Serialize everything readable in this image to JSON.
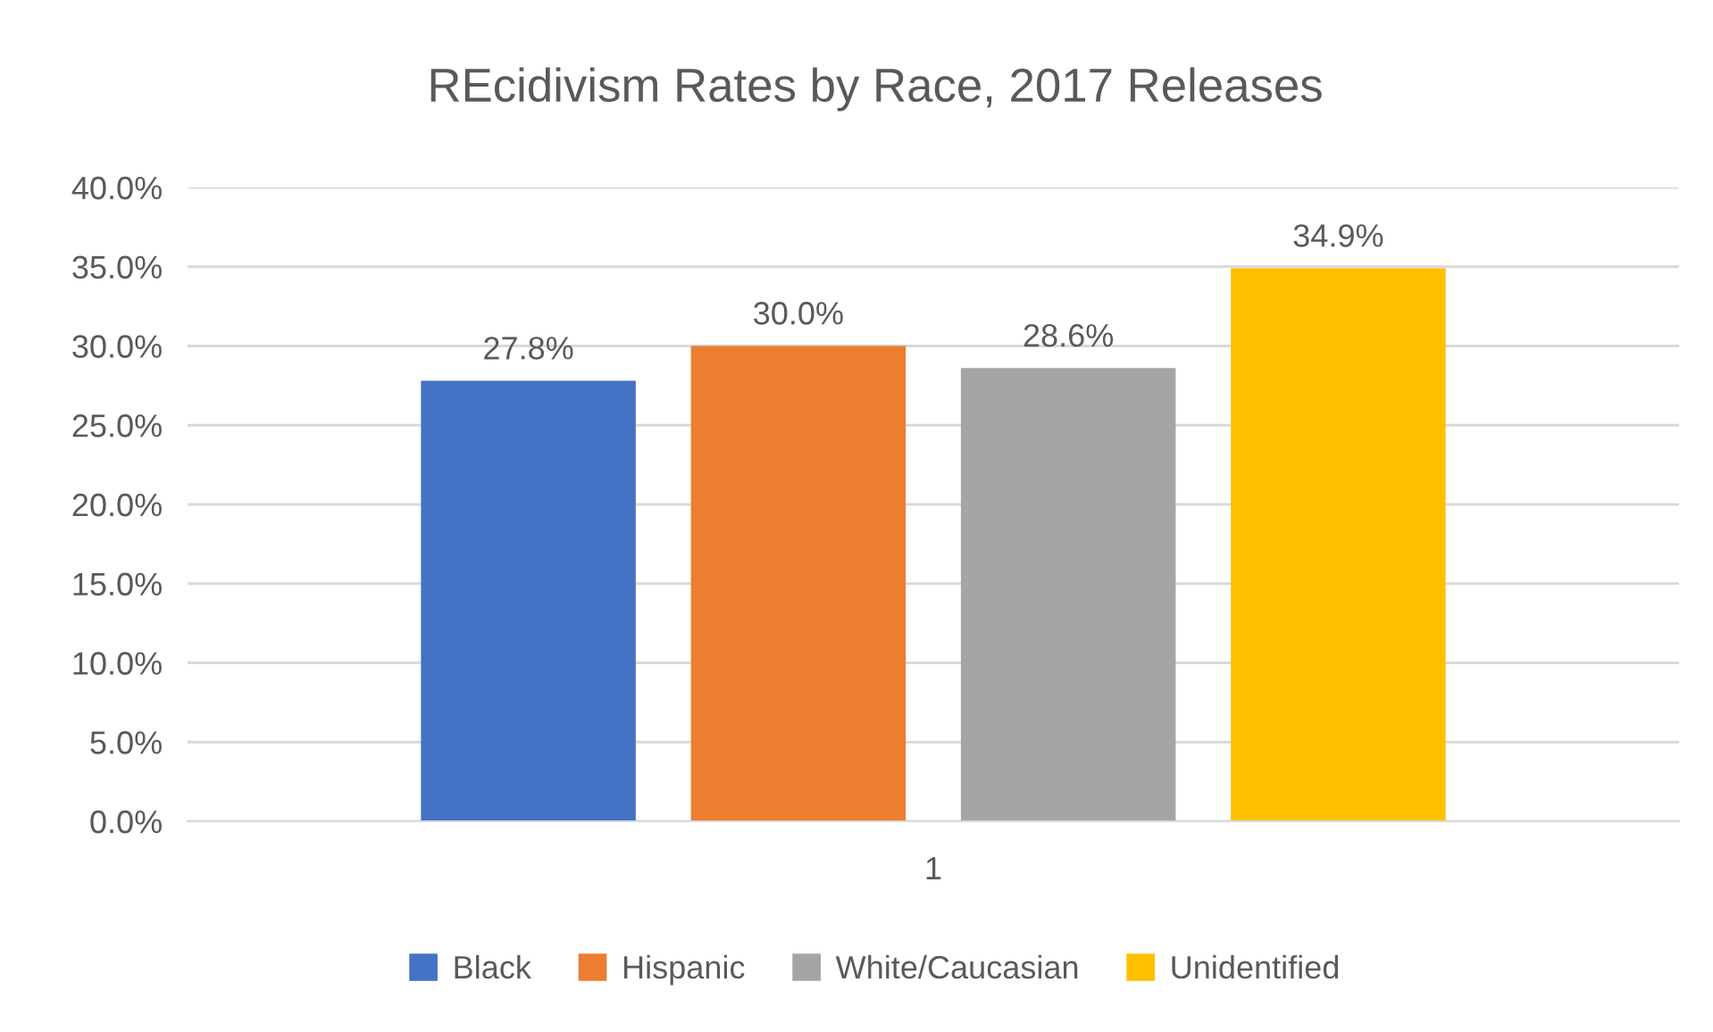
{
  "chart_data": {
    "type": "bar",
    "title": "REcidivism Rates by Race, 2017 Releases",
    "categories": [
      "1"
    ],
    "series": [
      {
        "name": "Black",
        "color": "#4472c4",
        "values": [
          27.8
        ],
        "value_labels": [
          "27.8%"
        ]
      },
      {
        "name": "Hispanic",
        "color": "#ed7d31",
        "values": [
          30.0
        ],
        "value_labels": [
          "30.0%"
        ]
      },
      {
        "name": "White/Caucasian",
        "color": "#a5a5a5",
        "values": [
          28.6
        ],
        "value_labels": [
          "28.6%"
        ]
      },
      {
        "name": "Unidentified",
        "color": "#ffc000",
        "values": [
          34.9
        ],
        "value_labels": [
          "34.9%"
        ]
      }
    ],
    "ylim": [
      0,
      40
    ],
    "yticks": [
      {
        "value": 0,
        "label": "0.0%"
      },
      {
        "value": 5,
        "label": "5.0%"
      },
      {
        "value": 10,
        "label": "10.0%"
      },
      {
        "value": 15,
        "label": "15.0%"
      },
      {
        "value": 20,
        "label": "20.0%"
      },
      {
        "value": 25,
        "label": "25.0%"
      },
      {
        "value": 30,
        "label": "30.0%"
      },
      {
        "value": 35,
        "label": "35.0%"
      },
      {
        "value": 40,
        "label": "40.0%"
      }
    ],
    "grid": "y",
    "legend": "bottom"
  }
}
